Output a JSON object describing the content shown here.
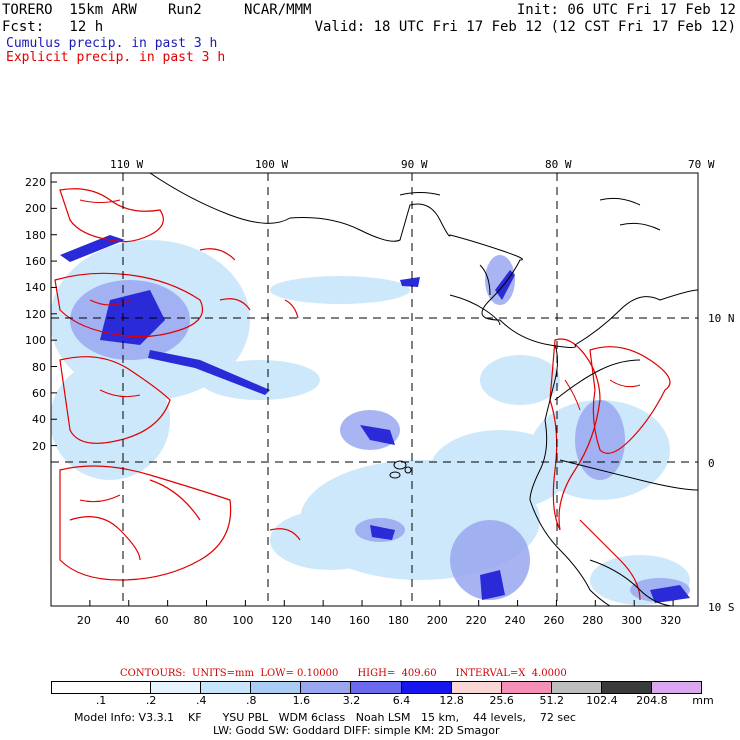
{
  "header": {
    "model": "TORERO  15km ARW",
    "run": "Run2",
    "org": "NCAR/MMM",
    "init": "Init: 06 UTC Fri 17 Feb 12",
    "fcst": "Fcst:   12 h",
    "valid": "Valid: 18 UTC Fri 17 Feb 12 (12 CST Fri 17 Feb 12)"
  },
  "legend": {
    "cumulus": "Cumulus precip. in past 3 h",
    "explicit": "Explicit precip. in past 3 h",
    "cumulus_color": "#1a1ab8",
    "explicit_color": "#e00000"
  },
  "map": {
    "lon_labels": [
      "110 W",
      "100 W",
      "90 W",
      "80 W",
      "70 W"
    ],
    "lat_labels": [
      "10 N",
      "0",
      "10 S"
    ],
    "y_ticks": [
      "220",
      "200",
      "180",
      "160",
      "140",
      "120",
      "100",
      "80",
      "60",
      "40",
      "20"
    ],
    "x_ticks": [
      "20",
      "40",
      "60",
      "80",
      "100",
      "120",
      "140",
      "160",
      "180",
      "200",
      "220",
      "240",
      "260",
      "280",
      "300",
      "320"
    ]
  },
  "contours": {
    "text": "CONTOURS:  UNITS=mm  LOW= 0.10000      HIGH=  409.60      INTERVAL=X  4.0000"
  },
  "scale": {
    "values": [
      ".1",
      ".2",
      ".4",
      ".8",
      "1.6",
      "3.2",
      "6.4",
      "12.8",
      "25.6",
      "51.2",
      "102.4",
      "204.8"
    ],
    "unit": "mm",
    "colors": [
      "#ffffff",
      "#ffffff",
      "#e6f4ff",
      "#c8e6fb",
      "#aacdf5",
      "#9aa7f0",
      "#6a6af0",
      "#1515ee",
      "#fbd6d6",
      "#f58fb8",
      "#bdbdbd",
      "#3a3a3a",
      "#d9a8f0"
    ]
  },
  "footer": {
    "line1": "Model Info: V3.3.1    KF      YSU PBL   WDM 6class   Noah LSM   15 km,    44 levels,    72 sec",
    "line2": "LW: Godd SW: Goddard DIFF: simple KM: 2D Smagor"
  }
}
